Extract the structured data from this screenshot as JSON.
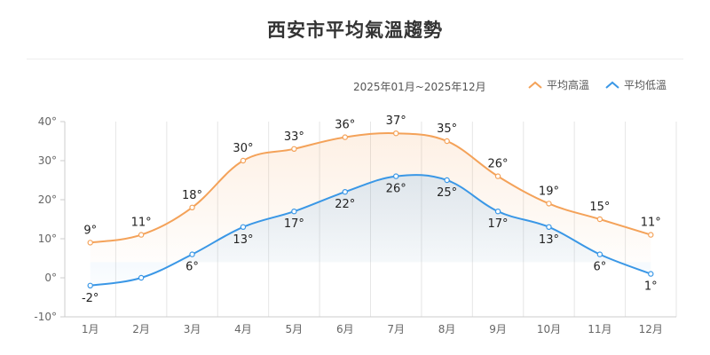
{
  "title": "西安市平均氣溫趨勢",
  "date_range": "2025年01月~2025年12月",
  "colors": {
    "high": "#f4a259",
    "low": "#3a97e6",
    "grid": "#e6e6e6",
    "axis": "#cccccc"
  },
  "chart_data": {
    "type": "line",
    "title": "西安市平均氣溫趨勢",
    "subtitle": "2025年01月~2025年12月",
    "categories": [
      "1月",
      "2月",
      "3月",
      "4月",
      "5月",
      "6月",
      "7月",
      "8月",
      "9月",
      "10月",
      "11月",
      "12月"
    ],
    "series": [
      {
        "name": "平均高溫",
        "values": [
          9,
          11,
          18,
          30,
          33,
          36,
          37,
          35,
          26,
          19,
          15,
          11
        ]
      },
      {
        "name": "平均低溫",
        "values": [
          -2,
          0,
          6,
          13,
          17,
          22,
          26,
          25,
          17,
          13,
          6,
          1
        ]
      }
    ],
    "data_labels": {
      "high": [
        "9°",
        "11°",
        "18°",
        "30°",
        "33°",
        "36°",
        "37°",
        "35°",
        "26°",
        "19°",
        "15°",
        "11°"
      ],
      "low": [
        "-2°",
        "",
        "6°",
        "13°",
        "17°",
        "22°",
        "26°",
        "25°",
        "17°",
        "13°",
        "6°",
        "1°"
      ]
    },
    "y_ticks": [
      -10,
      0,
      10,
      20,
      30,
      40
    ],
    "y_tick_labels": [
      "-10°",
      "0°",
      "10°",
      "20°",
      "30°",
      "40°"
    ],
    "ylim": [
      -10,
      40
    ],
    "grid": "vertical",
    "legend_position": "top-right"
  }
}
